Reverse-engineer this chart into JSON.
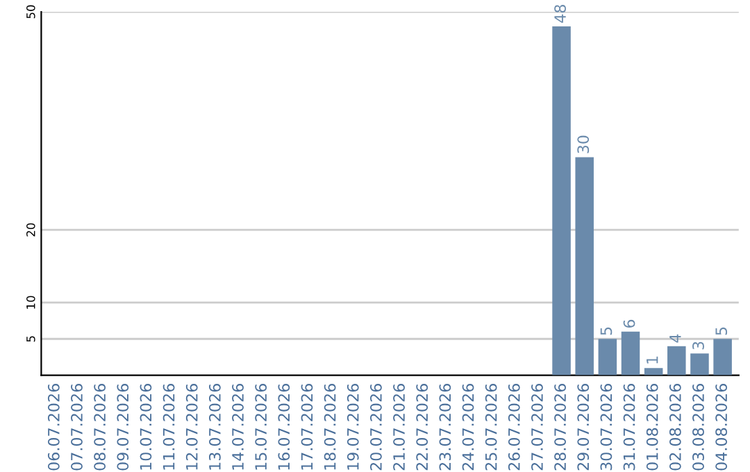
{
  "chart_data": {
    "type": "bar",
    "categories": [
      "06.07.2026",
      "07.07.2026",
      "08.07.2026",
      "09.07.2026",
      "10.07.2026",
      "11.07.2026",
      "12.07.2026",
      "13.07.2026",
      "14.07.2026",
      "15.07.2026",
      "16.07.2026",
      "17.07.2026",
      "18.07.2026",
      "19.07.2026",
      "20.07.2026",
      "21.07.2026",
      "22.07.2026",
      "23.07.2026",
      "24.07.2026",
      "25.07.2026",
      "26.07.2026",
      "27.07.2026",
      "28.07.2026",
      "29.07.2026",
      "30.07.2026",
      "31.07.2026",
      "01.08.2026",
      "02.08.2026",
      "03.08.2026",
      "04.08.2026"
    ],
    "values": [
      0,
      0,
      0,
      0,
      0,
      0,
      0,
      0,
      0,
      0,
      0,
      0,
      0,
      0,
      0,
      0,
      0,
      0,
      0,
      0,
      0,
      0,
      48,
      30,
      5,
      6,
      1,
      4,
      3,
      5
    ],
    "value_labels": [
      null,
      null,
      null,
      null,
      null,
      null,
      null,
      null,
      null,
      null,
      null,
      null,
      null,
      null,
      null,
      null,
      null,
      null,
      null,
      null,
      null,
      null,
      "48",
      "30",
      "5",
      "6",
      "1",
      "4",
      "3",
      "5"
    ],
    "color": "#6a8aab",
    "ylim": [
      0,
      50
    ],
    "yticks": [
      5,
      10,
      20,
      50
    ],
    "grid": "y"
  }
}
